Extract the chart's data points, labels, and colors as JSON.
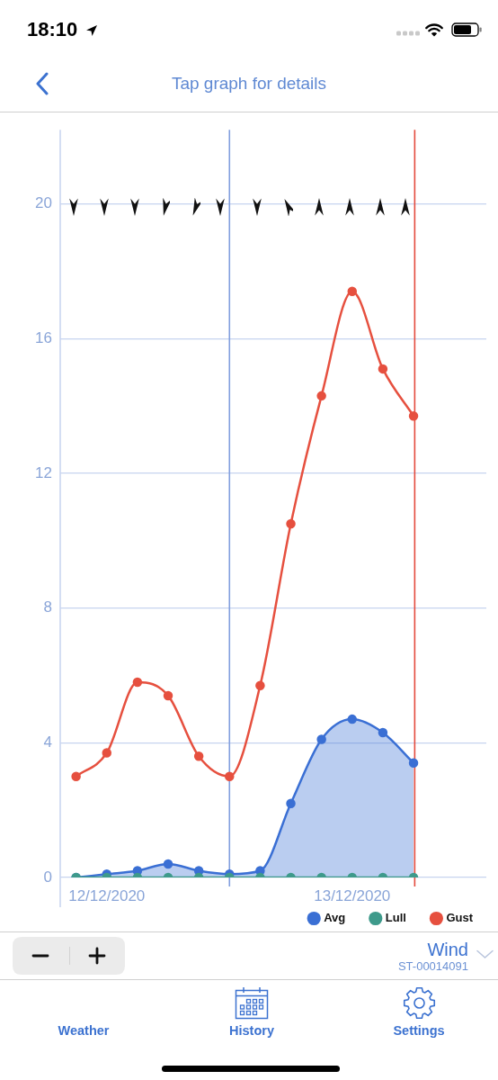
{
  "chart_data": {
    "type": "line",
    "title": "Tap graph for details",
    "x": [
      "2020-12-12T09:00",
      "2020-12-12T12:00",
      "2020-12-12T15:00",
      "2020-12-12T18:00",
      "2020-12-12T21:00",
      "2020-12-13T00:00",
      "2020-12-13T03:00",
      "2020-12-13T06:00",
      "2020-12-13T09:00",
      "2020-12-13T12:00",
      "2020-12-13T15:00",
      "2020-12-13T18:00"
    ],
    "xlim": [
      "2020-12-12T07:27",
      "2020-12-14T01:07"
    ],
    "xticks": [
      {
        "value": "2020-12-12T12:00",
        "label": "12/12/2020"
      },
      {
        "value": "2020-12-13T12:00",
        "label": "13/12/2020"
      }
    ],
    "ylim": [
      0,
      22.2
    ],
    "yticks": [
      0,
      4,
      8,
      12,
      16,
      20
    ],
    "series": [
      {
        "name": "Avg",
        "type": "area",
        "color": "#3a6fd4",
        "values": [
          0,
          0.1,
          0.2,
          0.4,
          0.2,
          0.1,
          0.2,
          2.2,
          4.1,
          4.7,
          4.3,
          3.4
        ]
      },
      {
        "name": "Lull",
        "type": "line",
        "color": "#3e9a8b",
        "values": [
          0,
          0,
          0,
          0,
          0,
          0,
          0,
          0,
          0,
          0,
          0,
          0
        ]
      },
      {
        "name": "Gust",
        "type": "line",
        "color": "#e6503f",
        "values": [
          3.0,
          3.7,
          5.8,
          5.4,
          3.6,
          3.0,
          5.7,
          10.5,
          14.3,
          17.4,
          15.1,
          13.7
        ]
      }
    ],
    "ref_lines": [
      {
        "axis": "x",
        "value": "2020-12-13T00:00",
        "color": "#819fde"
      },
      {
        "axis": "x",
        "value": "2020-12-13T18:07",
        "color": "#e34b3d"
      }
    ],
    "grid": "y",
    "legend": "bottom right",
    "marker": "circle",
    "line_style": "solid",
    "annotations": [
      "18:10",
      "Wind",
      "ST-00014091",
      "Weather",
      "History",
      "Settings"
    ]
  }
}
